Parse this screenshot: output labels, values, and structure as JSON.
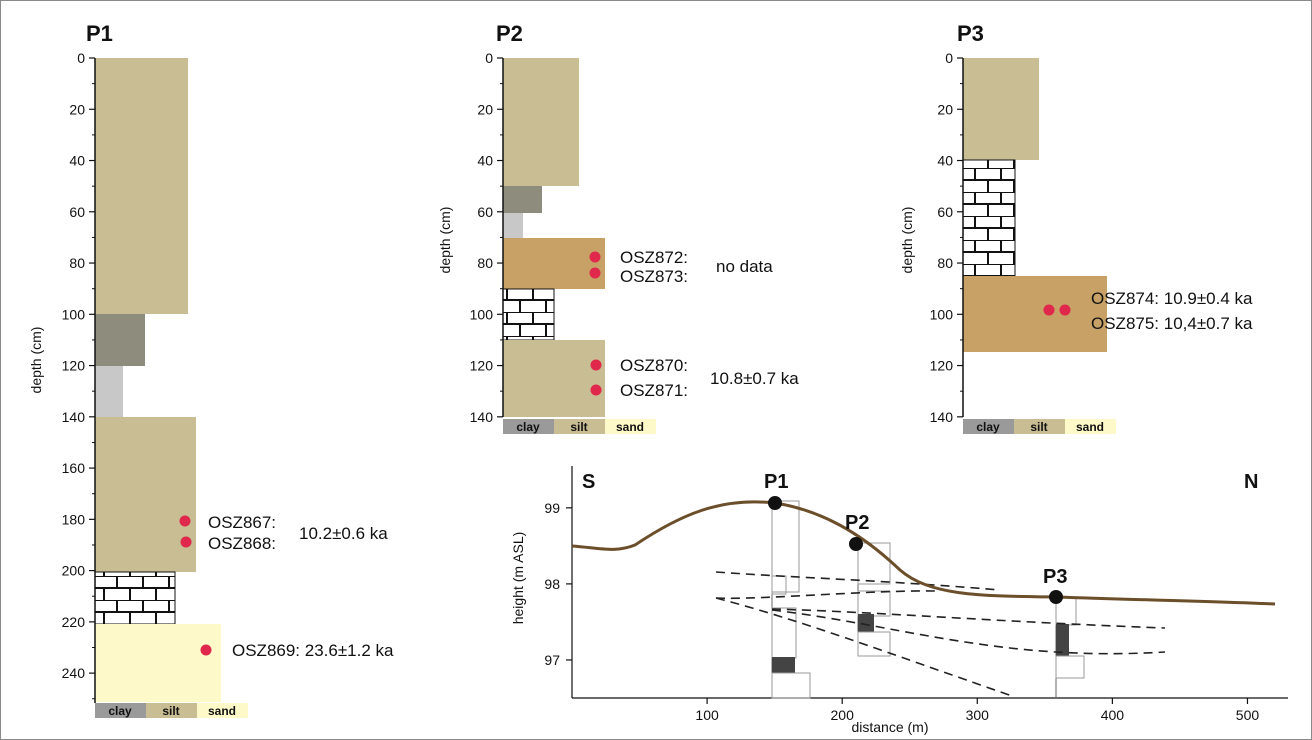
{
  "colors": {
    "tan": "#c9bd93",
    "dark_grey": "#8e8d7d",
    "light_grey": "#c8c8c8",
    "ochre": "#c7a165",
    "pale_yellow": "#fdf9c9",
    "sample_dot": "#e0284c",
    "terrain": "#6b4e2a",
    "clay_key": "#9a9a9a",
    "silt_key": "#c9bd93",
    "sand_key": "#fdf9c9"
  },
  "grain_size": {
    "clay": "clay",
    "silt": "silt",
    "sand": "sand"
  },
  "profiles": [
    {
      "id": "P1",
      "title": "P1",
      "ylabel": "depth (cm)",
      "ticks": [
        "0",
        "20",
        "40",
        "60",
        "80",
        "100",
        "120",
        "140",
        "160",
        "180",
        "200",
        "220",
        "240"
      ],
      "layers": [
        {
          "from": 0,
          "to": 100,
          "fill": "tan",
          "width": "silt-coarse"
        },
        {
          "from": 100,
          "to": 120,
          "fill": "dark_grey",
          "width": "clay-silt"
        },
        {
          "from": 120,
          "to": 140,
          "fill": "light_grey",
          "width": "clay"
        },
        {
          "from": 140,
          "to": 200,
          "fill": "tan",
          "width": "silt-fine"
        },
        {
          "from": 200,
          "to": 220,
          "fill": "brick",
          "width": "silt"
        },
        {
          "from": 220,
          "to": 253,
          "fill": "pale_yellow",
          "width": "sand"
        }
      ],
      "samples": [
        {
          "depth": 180,
          "label": "OSZ867:"
        },
        {
          "depth": 188,
          "label": "OSZ868:"
        },
        {
          "depth": 230,
          "label": "OSZ869: 23.6±1.2 ka"
        }
      ],
      "ages": [
        "10.2±0.6 ka"
      ]
    },
    {
      "id": "P2",
      "title": "P2",
      "ylabel": "depth (cm)",
      "ticks": [
        "0",
        "20",
        "40",
        "60",
        "80",
        "100",
        "120",
        "140"
      ],
      "samples": [
        {
          "depth": 78,
          "label": "OSZ872:"
        },
        {
          "depth": 84,
          "label": "OSZ873:"
        },
        {
          "depth": 120,
          "label": "OSZ870:"
        },
        {
          "depth": 130,
          "label": "OSZ871:"
        }
      ],
      "ages": [
        "no data",
        "10.8±0.7 ka"
      ]
    },
    {
      "id": "P3",
      "title": "P3",
      "ylabel": "depth (cm)",
      "ticks": [
        "0",
        "20",
        "40",
        "60",
        "80",
        "100",
        "120",
        "140"
      ],
      "samples": [
        {
          "depth": 98,
          "label": "OSZ874: 10.9±0.4 ka"
        },
        {
          "depth": 98,
          "label": "OSZ875: 10,4±0.7 ka"
        }
      ]
    }
  ],
  "cross_section": {
    "xlabel": "distance (m)",
    "ylabel": "height (m ASL)",
    "x_ticks": [
      "100",
      "200",
      "300",
      "400",
      "500"
    ],
    "y_ticks": [
      "99",
      "98",
      "97"
    ],
    "south": "S",
    "north": "N",
    "profile_labels": [
      "P1",
      "P2",
      "P3"
    ],
    "xlim": [
      0,
      530
    ],
    "ylim": [
      96.5,
      99.55
    ]
  }
}
